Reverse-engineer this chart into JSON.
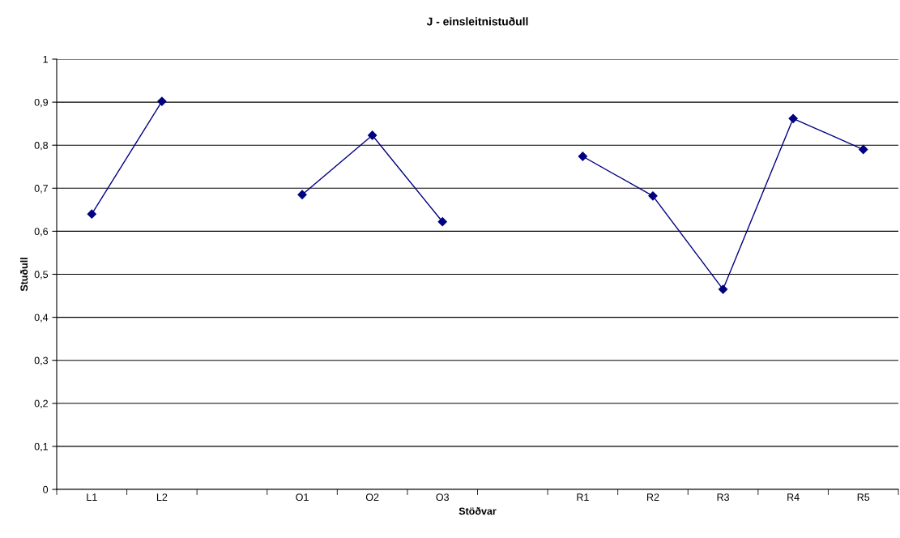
{
  "chart_data": {
    "type": "line",
    "title": "J - einsleitnistuðull",
    "xlabel": "Stöðvar",
    "ylabel": "Stuðull",
    "categories": [
      "L1",
      "L2",
      null,
      "O1",
      "O2",
      "O3",
      null,
      "R1",
      "R2",
      "R3",
      "R4",
      "R5"
    ],
    "series": [
      {
        "color": "#000080",
        "values": [
          0.64,
          0.902,
          null,
          0.685,
          0.823,
          0.622,
          null,
          0.774,
          0.682,
          0.465,
          0.862,
          0.79
        ]
      }
    ],
    "ylim": [
      0,
      1
    ],
    "yticks": [
      0,
      {
        "value": 0.1,
        "label": "0,1"
      },
      {
        "value": 0.2,
        "label": "0,2"
      },
      {
        "value": 0.3,
        "label": "0,3"
      },
      {
        "value": 0.4,
        "label": "0,4"
      },
      {
        "value": 0.5,
        "label": "0,5"
      },
      {
        "value": 0.6,
        "label": "0,6"
      },
      {
        "value": 0.7,
        "label": "0,7"
      },
      {
        "value": 0.8,
        "label": "0,8"
      },
      {
        "value": 0.9,
        "label": "0,9"
      },
      1
    ],
    "grid": "y",
    "marker": "diamond",
    "line_style": "solid",
    "legend": false
  }
}
